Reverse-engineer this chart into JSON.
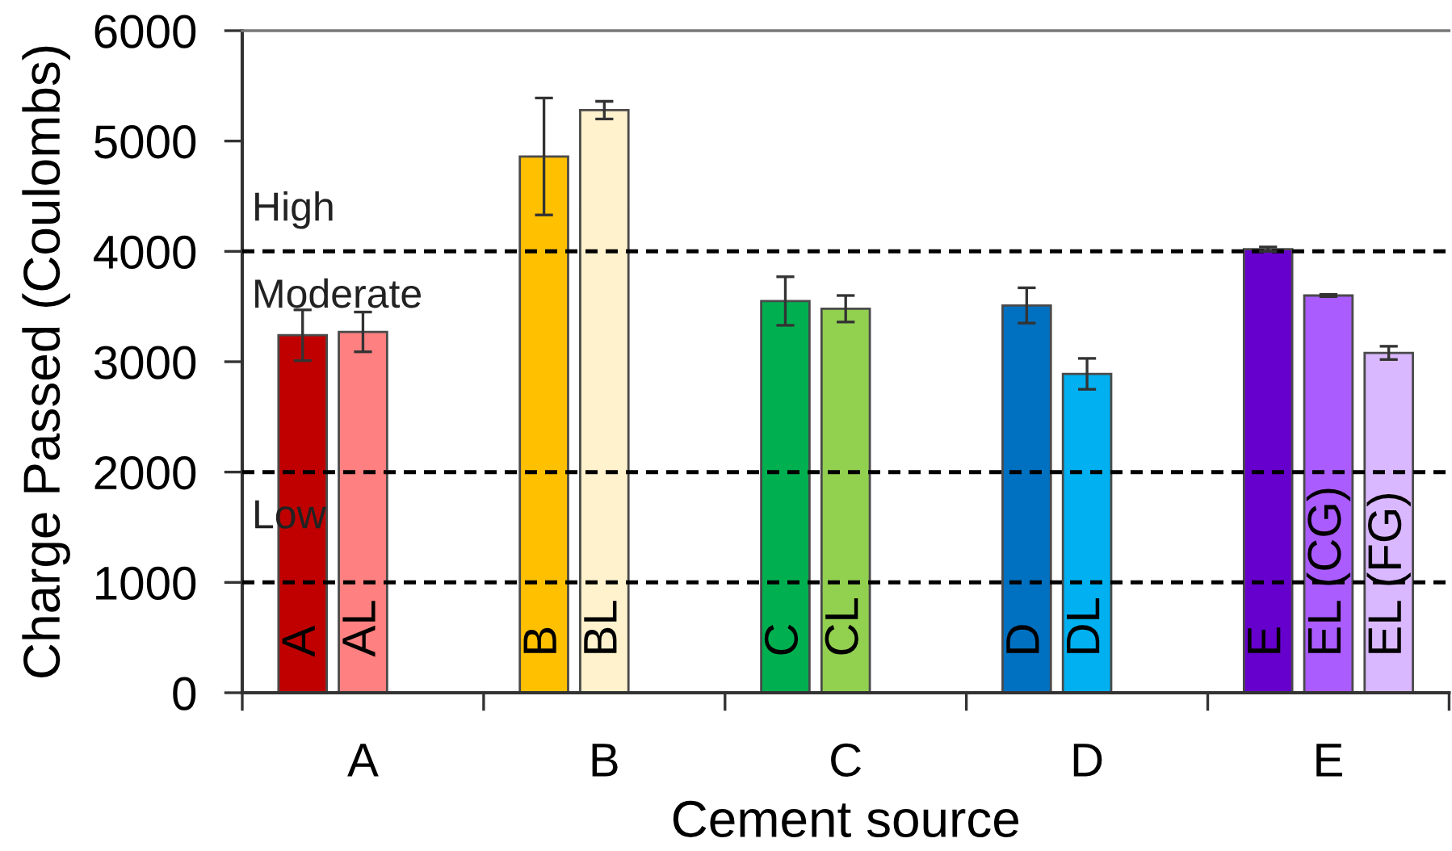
{
  "chart_data": {
    "type": "bar",
    "xlabel": "Cement source",
    "ylabel": "Charge Passed (Coulombs)",
    "categories": [
      "A",
      "B",
      "C",
      "D",
      "E"
    ],
    "series": [
      {
        "colors": [
          "#c00000",
          "#ffc000",
          "#00b050",
          "#0070c0",
          "#6600cc"
        ],
        "values": [
          3240,
          4860,
          3550,
          3510,
          4020
        ],
        "errors": [
          230,
          530,
          220,
          160,
          20
        ],
        "value_labels": [
          "A",
          "B",
          "C",
          "D",
          "E"
        ]
      },
      {
        "colors": [
          "#ff8080",
          "#fff2cc",
          "#92d050",
          "#00b0f0",
          "#aa5cff"
        ],
        "values": [
          3270,
          5280,
          3480,
          2890,
          3600
        ],
        "errors": [
          180,
          80,
          120,
          140,
          10
        ],
        "value_labels": [
          "AL",
          "BL",
          "CL",
          "DL",
          "EL (CG)"
        ]
      },
      {
        "colors": [
          null,
          null,
          null,
          null,
          "#dab8ff"
        ],
        "values": [
          null,
          null,
          null,
          null,
          3080
        ],
        "errors": [
          null,
          null,
          null,
          null,
          60
        ],
        "value_labels": [
          null,
          null,
          null,
          null,
          "EL (FG)"
        ]
      }
    ],
    "ylim": [
      0,
      6000
    ],
    "yticks": [
      0,
      1000,
      2000,
      3000,
      4000,
      5000,
      6000
    ],
    "ref_lines": [
      {
        "axis": "y",
        "value": 4000,
        "line_style": "dashed",
        "color": "#000000"
      },
      {
        "axis": "y",
        "value": 2000,
        "line_style": "dashed",
        "color": "#000000"
      },
      {
        "axis": "y",
        "value": 1000,
        "line_style": "dashed",
        "color": "#000000"
      }
    ],
    "annotations": [
      "High",
      "Moderate",
      "Low"
    ]
  }
}
